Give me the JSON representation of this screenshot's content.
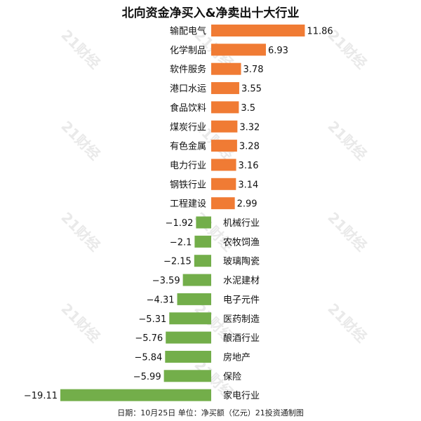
{
  "chart_data": {
    "type": "bar",
    "orientation": "horizontal",
    "title": "北向资金净买入&净卖出十大行业",
    "categories": [
      "输配电气",
      "化学制品",
      "软件服务",
      "港口水运",
      "食品饮料",
      "煤炭行业",
      "有色金属",
      "电力行业",
      "钢铁行业",
      "工程建设",
      "机械行业",
      "农牧饲渔",
      "玻璃陶瓷",
      "水泥建材",
      "电子元件",
      "医药制造",
      "酿酒行业",
      "房地产",
      "保险",
      "家电行业"
    ],
    "values": [
      11.86,
      6.93,
      3.78,
      3.55,
      3.5,
      3.32,
      3.28,
      3.16,
      3.14,
      2.99,
      -1.92,
      -2.1,
      -2.15,
      -3.59,
      -4.31,
      -5.31,
      -5.76,
      -5.84,
      -5.99,
      -19.11
    ],
    "value_labels": [
      "11.86",
      "6.93",
      "3.78",
      "3.55",
      "3.5",
      "3.32",
      "3.28",
      "3.16",
      "3.14",
      "2.99",
      "−1.92",
      "−2.1",
      "−2.15",
      "−3.59",
      "−4.31",
      "−5.31",
      "−5.76",
      "−5.84",
      "−5.99",
      "−19.11"
    ],
    "colors": {
      "positive": "#f07b34",
      "negative": "#73ae4a"
    },
    "grid": false,
    "legend": "none"
  },
  "footnote": "日期：10月25日 单位：净买额（亿元）21投资通制图",
  "watermark": "21财经"
}
